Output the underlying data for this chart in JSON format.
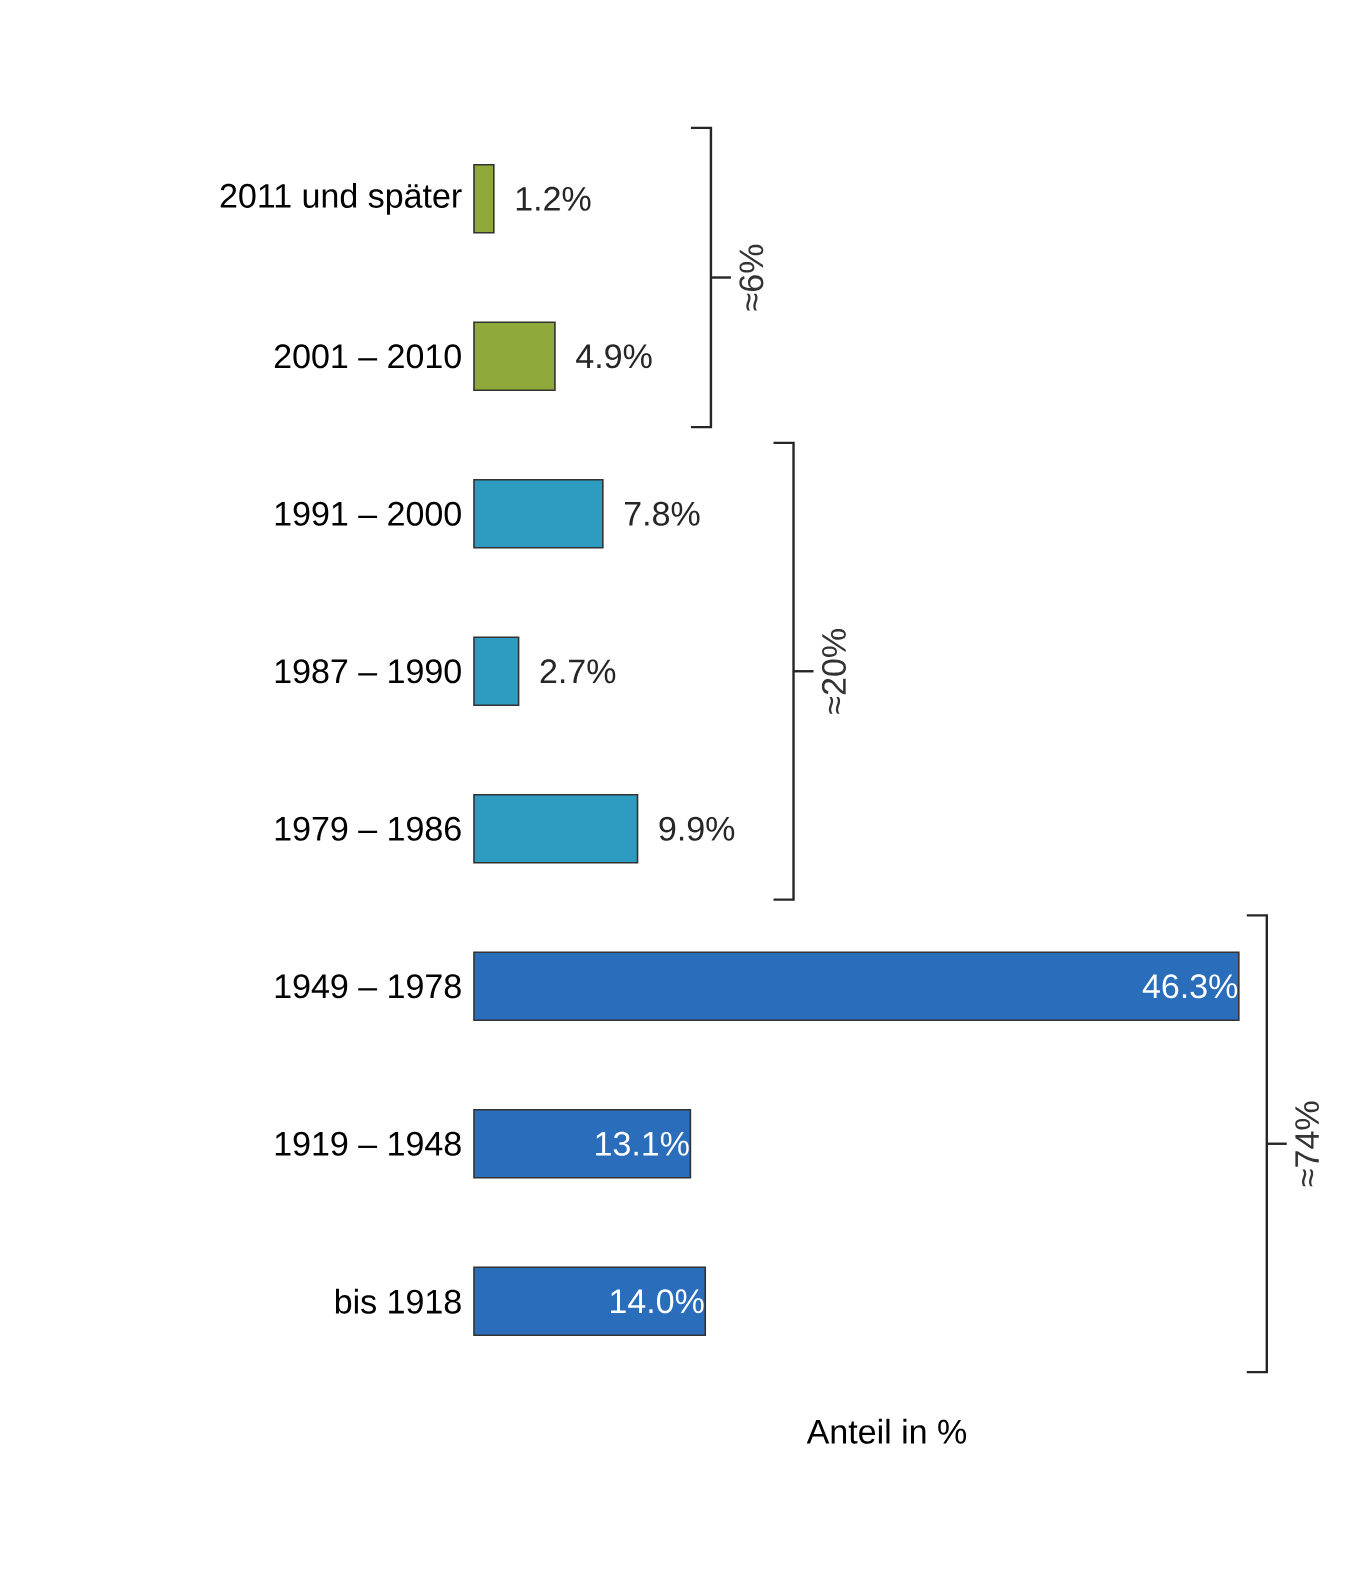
{
  "chart_data": {
    "type": "bar",
    "orientation": "horizontal",
    "categories": [
      "2011 und später",
      "2001 – 2010",
      "1991 – 2000",
      "1987 – 1990",
      "1979 – 1986",
      "1949 – 1978",
      "1919 – 1948",
      "bis 1918"
    ],
    "values": [
      1.2,
      4.9,
      7.8,
      2.7,
      9.9,
      46.3,
      13.1,
      14.0
    ],
    "colors": [
      "#8faa3b",
      "#8faa3b",
      "#2e9bc0",
      "#2e9bc0",
      "#2e9bc0",
      "#2a6ebb",
      "#2a6ebb",
      "#2a6ebb"
    ],
    "value_labels": [
      "1.2%",
      "4.9%",
      "7.8%",
      "2.7%",
      "9.9%",
      "46.3%",
      "13.1%",
      "14.0%"
    ],
    "xlabel": "Anteil in %",
    "tick_labels": "y",
    "annotations": [
      "≈6%",
      "≈20%",
      "≈74%"
    ]
  }
}
